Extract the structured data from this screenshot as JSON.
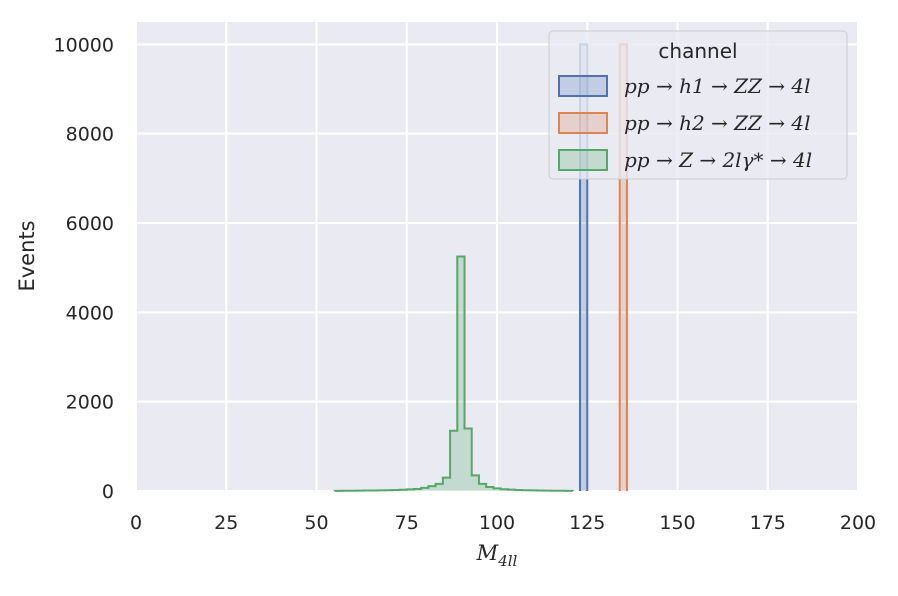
{
  "chart_data": {
    "type": "histogram",
    "xlabel": "M_4ll",
    "ylabel": "Events",
    "xlim": [
      0,
      200
    ],
    "ylim": [
      0,
      10500
    ],
    "xticks": [
      "0",
      "25",
      "50",
      "75",
      "100",
      "125",
      "150",
      "175",
      "200"
    ],
    "yticks": [
      "0",
      "2000",
      "4000",
      "6000",
      "8000",
      "10000"
    ],
    "grid": true,
    "legend": {
      "title": "channel",
      "placement": "top-right"
    },
    "bin_width": 2,
    "series": [
      {
        "name": "pp → h1 → ZZ → 4l",
        "color": "#4c72b0",
        "bins": [
          [
            123,
            125,
            10000
          ]
        ]
      },
      {
        "name": "pp → h2 → ZZ → 4l",
        "color": "#dd8452",
        "bins": [
          [
            134,
            136,
            10000
          ]
        ]
      },
      {
        "name": "pp → Z → 2lγ* → 4l",
        "color": "#55a868",
        "bins": [
          [
            55,
            57,
            3
          ],
          [
            57,
            59,
            5
          ],
          [
            59,
            61,
            6
          ],
          [
            61,
            63,
            8
          ],
          [
            63,
            65,
            10
          ],
          [
            65,
            67,
            12
          ],
          [
            67,
            69,
            14
          ],
          [
            69,
            71,
            18
          ],
          [
            71,
            73,
            22
          ],
          [
            73,
            75,
            28
          ],
          [
            75,
            77,
            35
          ],
          [
            77,
            79,
            45
          ],
          [
            79,
            81,
            70
          ],
          [
            81,
            83,
            110
          ],
          [
            83,
            85,
            160
          ],
          [
            85,
            87,
            300
          ],
          [
            87,
            89,
            1350
          ],
          [
            89,
            91,
            5250
          ],
          [
            91,
            93,
            1400
          ],
          [
            93,
            95,
            350
          ],
          [
            95,
            97,
            160
          ],
          [
            97,
            99,
            90
          ],
          [
            99,
            101,
            60
          ],
          [
            101,
            103,
            40
          ],
          [
            103,
            105,
            30
          ],
          [
            105,
            107,
            22
          ],
          [
            107,
            109,
            17
          ],
          [
            109,
            111,
            13
          ],
          [
            111,
            113,
            10
          ],
          [
            113,
            115,
            8
          ],
          [
            115,
            117,
            6
          ],
          [
            117,
            119,
            5
          ],
          [
            119,
            121,
            3
          ]
        ]
      }
    ]
  }
}
